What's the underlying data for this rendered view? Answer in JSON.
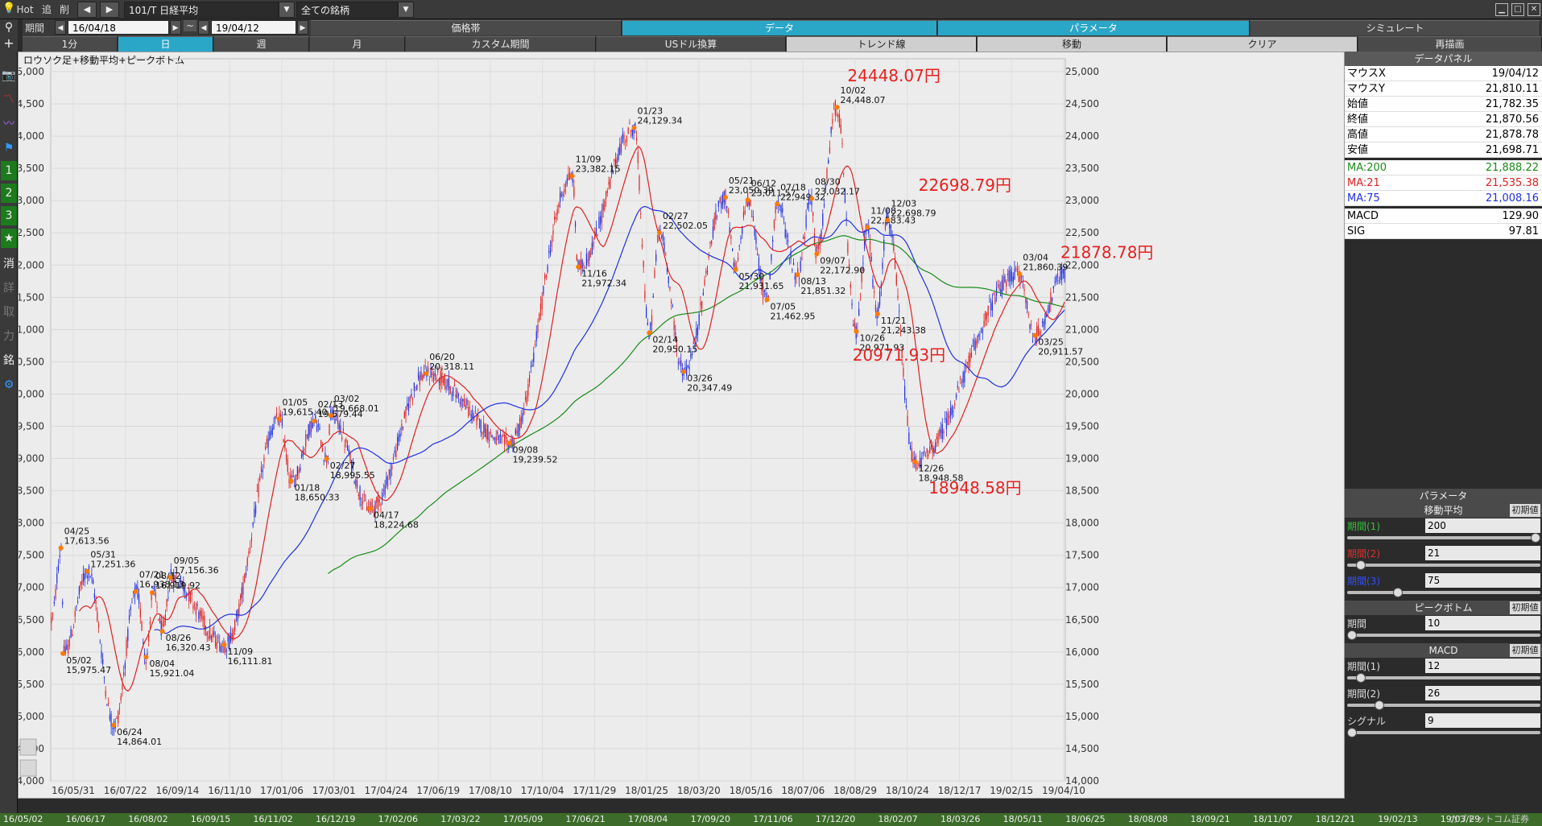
{
  "topbar": {
    "hot": "Hot",
    "add": "追",
    "del": "削",
    "symbol": "101/T 日経平均",
    "category": "全ての銘柄"
  },
  "period_row": {
    "label": "期間",
    "start": "16/04/18",
    "tilde": "~",
    "end": "19/04/12",
    "tabs": [
      "価格帯",
      "データ",
      "パラメータ",
      "シミュレート"
    ]
  },
  "range_row": {
    "tabs": [
      "1分",
      "日",
      "週",
      "月",
      "カスタム期間",
      "USドル換算",
      "トレンド線",
      "移動",
      "クリア",
      "再描画"
    ]
  },
  "left_tools": [
    "+",
    "▣",
    "",
    "",
    "",
    "1",
    "2",
    "3",
    "★",
    "消",
    "詳",
    "取",
    "力",
    "銘",
    "⚙"
  ],
  "chart_title": "ロウソク足+移動平均+ピークボトム",
  "data_panel": {
    "title": "データパネル",
    "rows": [
      {
        "k": "マウスX",
        "v": "19/04/12",
        "color": "#000000"
      },
      {
        "k": "マウスY",
        "v": "21,810.11",
        "color": "#000000"
      },
      {
        "k": "始値",
        "v": "21,782.35",
        "color": "#000000"
      },
      {
        "k": "終値",
        "v": "21,870.56",
        "color": "#000000"
      },
      {
        "k": "高値",
        "v": "21,878.78",
        "color": "#000000"
      },
      {
        "k": "安値",
        "v": "21,698.71",
        "color": "#000000"
      },
      {
        "k": "MA:200",
        "v": "21,888.22",
        "color": "#1a8a1a"
      },
      {
        "k": "MA:21",
        "v": "21,535.38",
        "color": "#e02020"
      },
      {
        "k": "MA:75",
        "v": "21,008.16",
        "color": "#2030e0"
      },
      {
        "k": "MACD",
        "v": "129.90",
        "color": "#000000"
      },
      {
        "k": "SIG",
        "v": "97.81",
        "color": "#000000"
      }
    ]
  },
  "params": {
    "title": "パラメータ",
    "reset": "初期値",
    "sections": [
      {
        "name": "移動平均",
        "items": [
          {
            "label": "期間(1)",
            "value": "200",
            "color": "#35c035",
            "level": 1.0
          },
          {
            "label": "期間(2)",
            "value": "21",
            "color": "#e03030",
            "level": 0.05
          },
          {
            "label": "期間(3)",
            "value": "75",
            "color": "#3050ff",
            "level": 0.25
          }
        ]
      },
      {
        "name": "ピークボトム",
        "items": [
          {
            "label": "期間",
            "value": "10",
            "color": "#dddddd",
            "level": 0.0
          }
        ]
      },
      {
        "name": "MACD",
        "items": [
          {
            "label": "期間(1)",
            "value": "12",
            "color": "#dddddd",
            "level": 0.05
          },
          {
            "label": "期間(2)",
            "value": "26",
            "color": "#dddddd",
            "level": 0.15
          },
          {
            "label": "シグナル",
            "value": "9",
            "color": "#dddddd",
            "level": 0.0
          }
        ]
      }
    ]
  },
  "bottom_dates": [
    "16/05/02",
    "16/06/17",
    "16/08/02",
    "16/09/15",
    "16/11/02",
    "16/12/19",
    "17/02/06",
    "17/03/22",
    "17/05/09",
    "17/06/21",
    "17/08/04",
    "17/09/20",
    "17/11/06",
    "17/12/20",
    "18/02/07",
    "18/03/26",
    "18/05/11",
    "18/06/25",
    "18/08/08",
    "18/09/21",
    "18/11/07",
    "18/12/21",
    "19/02/13",
    "19/03/29"
  ],
  "bottom_brand": "カブドットコム証券",
  "chart_data": {
    "type": "line",
    "title": "ロウソク足+移動平均+ピークボトム",
    "ylim": [
      14000,
      25200
    ],
    "yticks": [
      14000,
      14500,
      15000,
      15500,
      16000,
      16500,
      17000,
      17500,
      18000,
      18500,
      19000,
      19500,
      20000,
      20500,
      21000,
      21500,
      22000,
      22500,
      23000,
      23500,
      24000,
      24500,
      25000
    ],
    "xticks": [
      "16/05/31",
      "16/07/22",
      "16/09/14",
      "16/11/10",
      "17/01/06",
      "17/03/01",
      "17/04/24",
      "17/06/19",
      "17/08/10",
      "17/10/04",
      "17/11/29",
      "18/01/25",
      "18/03/20",
      "18/05/16",
      "18/07/06",
      "18/08/29",
      "18/10/24",
      "18/12/17",
      "19/02/15",
      "19/04/10"
    ],
    "series": [
      {
        "name": "MA:200",
        "color": "#1a8a1a"
      },
      {
        "name": "MA:21",
        "color": "#e02020"
      },
      {
        "name": "MA:75",
        "color": "#2030e0"
      }
    ],
    "peaks": [
      {
        "date": "04/25",
        "value": "17,613.56",
        "t": 0.01,
        "y": 17613.56,
        "pos": "above"
      },
      {
        "date": "05/02",
        "value": "15,975.47",
        "t": 0.012,
        "y": 15975.47,
        "pos": "below"
      },
      {
        "date": "05/31",
        "value": "17,251.36",
        "t": 0.036,
        "y": 17251.36,
        "pos": "above"
      },
      {
        "date": "06/24",
        "value": "14,864.01",
        "t": 0.062,
        "y": 14864.01,
        "pos": "below"
      },
      {
        "date": "07/21",
        "value": "16,938.13",
        "t": 0.084,
        "y": 16938.13,
        "pos": "above"
      },
      {
        "date": "08/04",
        "value": "15,921.04",
        "t": 0.094,
        "y": 15921.04,
        "pos": "below"
      },
      {
        "date": "08/12",
        "value": "16,919.92",
        "t": 0.1,
        "y": 16919.92,
        "pos": "above"
      },
      {
        "date": "08/26",
        "value": "16,320.43",
        "t": 0.11,
        "y": 16320.43,
        "pos": "below"
      },
      {
        "date": "09/05",
        "value": "17,156.36",
        "t": 0.118,
        "y": 17156.36,
        "pos": "above"
      },
      {
        "date": "11/09",
        "value": "16,111.81",
        "t": 0.171,
        "y": 16111.81,
        "pos": "below"
      },
      {
        "date": "01/05",
        "value": "19,615.40",
        "t": 0.225,
        "y": 19615.4,
        "pos": "above"
      },
      {
        "date": "01/18",
        "value": "18,650.33",
        "t": 0.237,
        "y": 18650.33,
        "pos": "below"
      },
      {
        "date": "02/13",
        "value": "19,579.44",
        "t": 0.26,
        "y": 19579.44,
        "pos": "above"
      },
      {
        "date": "03/02",
        "value": "19,668.01",
        "t": 0.276,
        "y": 19668.01,
        "pos": "above"
      },
      {
        "date": "02/27",
        "value": "18,995.55",
        "t": 0.272,
        "y": 18995.55,
        "pos": "below"
      },
      {
        "date": "04/17",
        "value": "18,224.68",
        "t": 0.315,
        "y": 18224.68,
        "pos": "below"
      },
      {
        "date": "06/20",
        "value": "20,318.11",
        "t": 0.37,
        "y": 20318.11,
        "pos": "above"
      },
      {
        "date": "09/08",
        "value": "19,239.52",
        "t": 0.452,
        "y": 19239.52,
        "pos": "below"
      },
      {
        "date": "11/09",
        "value": "23,382.15",
        "t": 0.514,
        "y": 23382.15,
        "pos": "above"
      },
      {
        "date": "11/16",
        "value": "21,972.34",
        "t": 0.52,
        "y": 21972.34,
        "pos": "below"
      },
      {
        "date": "01/23",
        "value": "24,129.34",
        "t": 0.575,
        "y": 24129.34,
        "pos": "above"
      },
      {
        "date": "02/27",
        "value": "22,502.05",
        "t": 0.6,
        "y": 22502.05,
        "pos": "above"
      },
      {
        "date": "02/14",
        "value": "20,950.15",
        "t": 0.59,
        "y": 20950.15,
        "pos": "below"
      },
      {
        "date": "03/26",
        "value": "20,347.49",
        "t": 0.624,
        "y": 20347.49,
        "pos": "below"
      },
      {
        "date": "05/21",
        "value": "23,050.39",
        "t": 0.665,
        "y": 23050.39,
        "pos": "above"
      },
      {
        "date": "05/30",
        "value": "21,931.65",
        "t": 0.675,
        "y": 21931.65,
        "pos": "below"
      },
      {
        "date": "06/12",
        "value": "23,011.57",
        "t": 0.687,
        "y": 23011.57,
        "pos": "above"
      },
      {
        "date": "07/05",
        "value": "21,462.95",
        "t": 0.706,
        "y": 21462.95,
        "pos": "below"
      },
      {
        "date": "07/18",
        "value": "22,949.32",
        "t": 0.716,
        "y": 22949.32,
        "pos": "above"
      },
      {
        "date": "08/13",
        "value": "21,851.32",
        "t": 0.736,
        "y": 21851.32,
        "pos": "below"
      },
      {
        "date": "08/30",
        "value": "23,032.17",
        "t": 0.75,
        "y": 23032.17,
        "pos": "above"
      },
      {
        "date": "09/07",
        "value": "22,172.90",
        "t": 0.755,
        "y": 22172.9,
        "pos": "below"
      },
      {
        "date": "10/02",
        "value": "24,448.07",
        "t": 0.775,
        "y": 24448.07,
        "pos": "above"
      },
      {
        "date": "10/26",
        "value": "20,971.93",
        "t": 0.794,
        "y": 20971.93,
        "pos": "below"
      },
      {
        "date": "11/08",
        "value": "22,583.43",
        "t": 0.805,
        "y": 22583.43,
        "pos": "above"
      },
      {
        "date": "11/21",
        "value": "21,243.38",
        "t": 0.815,
        "y": 21243.38,
        "pos": "below"
      },
      {
        "date": "12/03",
        "value": "22,698.79",
        "t": 0.825,
        "y": 22698.79,
        "pos": "above"
      },
      {
        "date": "12/26",
        "value": "18,948.58",
        "t": 0.852,
        "y": 18948.58,
        "pos": "below"
      },
      {
        "date": "03/04",
        "value": "21,860.39",
        "t": 0.955,
        "y": 21860.39,
        "pos": "above"
      },
      {
        "date": "03/25",
        "value": "20,911.57",
        "t": 0.97,
        "y": 20911.57,
        "pos": "below"
      }
    ],
    "annotations": [
      {
        "text": "24448.07円",
        "t": 0.79,
        "y": 24850
      },
      {
        "text": "22698.79円",
        "t": 0.86,
        "y": 23150
      },
      {
        "text": "21878.78円",
        "t": 1.0,
        "y": 22110
      },
      {
        "text": "20971.93円",
        "t": 0.795,
        "y": 20520
      },
      {
        "text": "18948.58円",
        "t": 0.87,
        "y": 18460
      }
    ]
  }
}
